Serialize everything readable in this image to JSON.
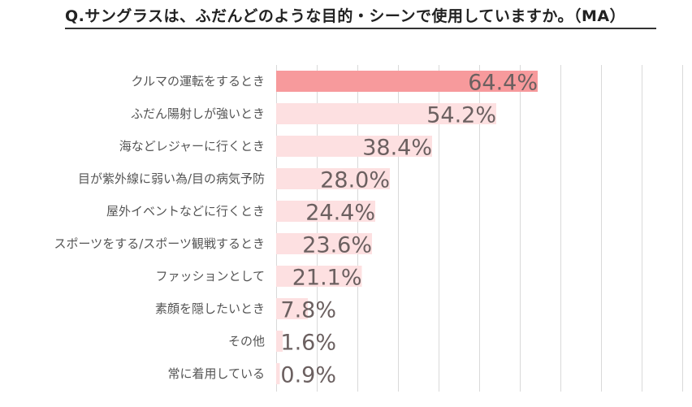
{
  "chart_data": {
    "type": "bar",
    "orientation": "horizontal",
    "title": "Q.サングラスは、ふだんどのような目的・シーンで使用していますか。（MA）",
    "categories": [
      "クルマの運転をするとき",
      "ふだん陽射しが強いとき",
      "海などレジャーに行くとき",
      "目が紫外線に弱い為/目の病気予防",
      "屋外イベントなどに行くとき",
      "スポーツをする/スポーツ観戦するとき",
      "ファッションとして",
      "素顔を隠したいとき",
      "その他",
      "常に着用している"
    ],
    "values": [
      64.4,
      54.2,
      38.4,
      28.0,
      24.4,
      23.6,
      21.1,
      7.8,
      1.6,
      0.9
    ],
    "data_labels": [
      "64.4%",
      "54.2%",
      "38.4%",
      "28.0%",
      "24.4%",
      "23.6%",
      "21.1%",
      "7.8%",
      "1.6%",
      "0.9%"
    ],
    "xlim": [
      0,
      100
    ],
    "grid": true,
    "colors": {
      "highlight": "#f79a9c",
      "bar": "#fde0e1",
      "grid": "#d9d9d9",
      "label": "#555555",
      "data_label": "#6b6060"
    }
  }
}
